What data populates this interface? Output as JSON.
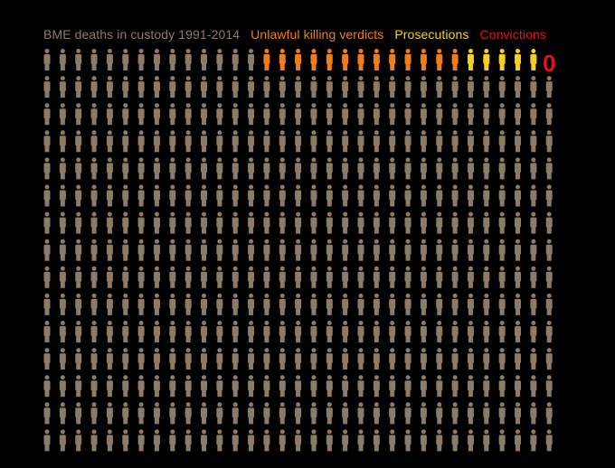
{
  "chart_data": {
    "type": "pictogram",
    "legend": [
      {
        "key": "deaths",
        "label": "BME deaths in custody 1991-2014",
        "color": "#8c7b68"
      },
      {
        "key": "unlawful",
        "label": "Unlawful killing verdicts",
        "color": "#ef7d1a"
      },
      {
        "key": "prosecutions",
        "label": "Prosecutions",
        "color": "#f4d11e"
      },
      {
        "key": "convictions",
        "label": "Convictions",
        "color": "#e3101f"
      }
    ],
    "grid": {
      "columns": 33,
      "rows": 15
    },
    "counts": {
      "deaths": 495,
      "unlawful_killing_verdicts": 13,
      "prosecutions": 5,
      "convictions": 0
    },
    "convictions_value_label": "0"
  }
}
